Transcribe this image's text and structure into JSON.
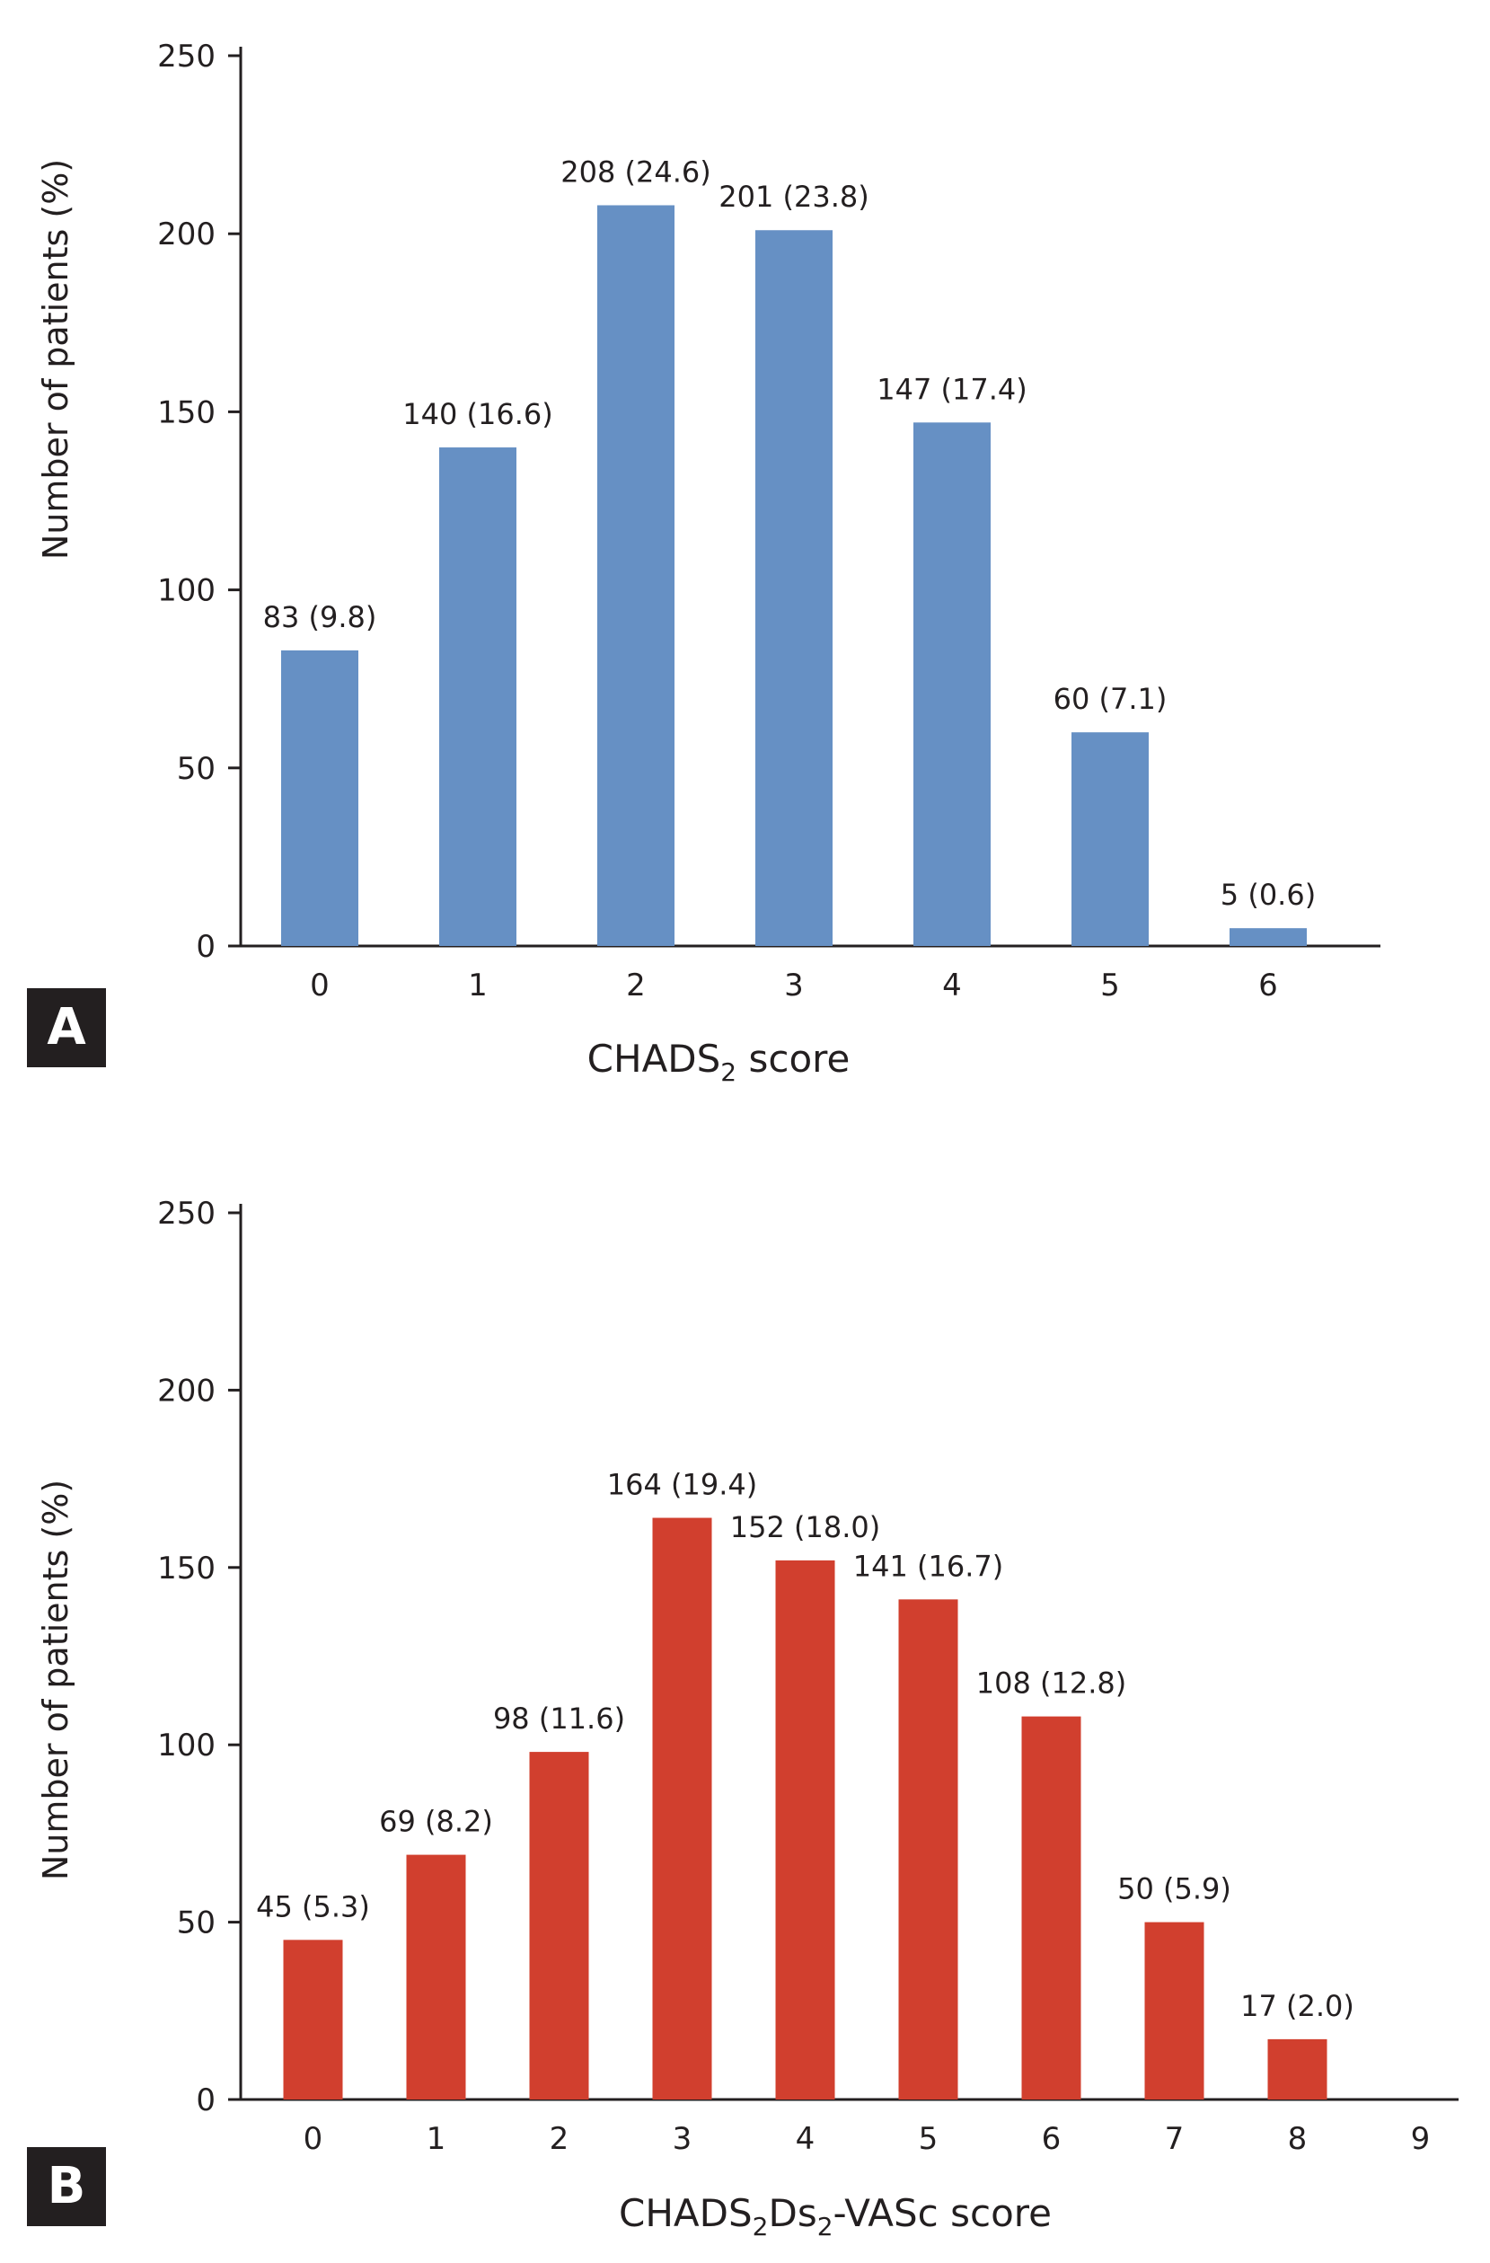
{
  "chart_data": [
    {
      "type": "bar",
      "panel_label": "A",
      "categories": [
        "0",
        "1",
        "2",
        "3",
        "4",
        "5",
        "6"
      ],
      "values": [
        83,
        140,
        208,
        201,
        147,
        60,
        5
      ],
      "data_labels": [
        "83 (9.8)",
        "140 (16.6)",
        "208 (24.6)",
        "201 (23.8)",
        "147 (17.4)",
        "60 (7.1)",
        "5 (0.6)"
      ],
      "ylabel": "Number of patients  (%)",
      "xlabel_parts": [
        "CHADS",
        "2",
        " score"
      ],
      "ylim": [
        0,
        250
      ],
      "yticks": [
        "0",
        "50",
        "100",
        "150",
        "200",
        "250"
      ],
      "color": "#6690c4",
      "grid": false
    },
    {
      "type": "bar",
      "panel_label": "B",
      "categories": [
        "0",
        "1",
        "2",
        "3",
        "4",
        "5",
        "6",
        "7",
        "8",
        "9"
      ],
      "values": [
        45,
        69,
        98,
        164,
        152,
        141,
        108,
        50,
        17,
        0
      ],
      "data_labels": [
        "45 (5.3)",
        "69 (8.2)",
        "98 (11.6)",
        "164 (19.4)",
        "152 (18.0)",
        "141 (16.7)",
        "108 (12.8)",
        "50 (5.9)",
        "17 (2.0)",
        ""
      ],
      "ylabel": "Number of patients  (%)",
      "xlabel_parts": [
        "CHADS",
        "2",
        "Ds",
        "2",
        "-VASc score"
      ],
      "ylim": [
        0,
        250
      ],
      "yticks": [
        "0",
        "50",
        "100",
        "150",
        "200",
        "250"
      ],
      "color": "#d13f2e",
      "grid": false
    }
  ]
}
